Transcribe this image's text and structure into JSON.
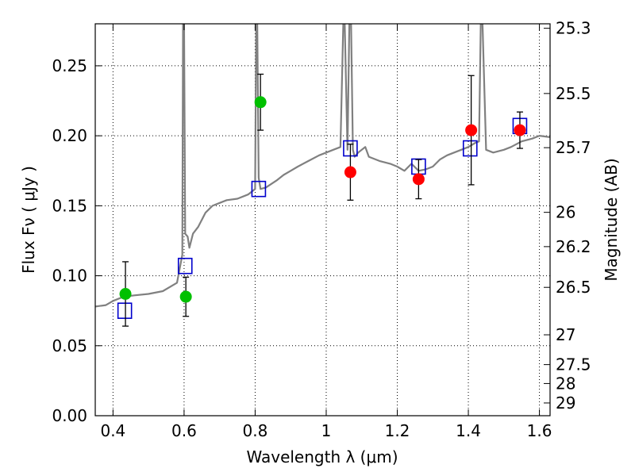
{
  "chart_data": {
    "type": "scatter",
    "xlabel": "Wavelength  λ (μm)",
    "ylabel": "Flux  Fν  ( μJy )",
    "y2label": "Magnitude (AB)",
    "xlim": [
      0.35,
      1.63
    ],
    "ylim": [
      0.0,
      0.28
    ],
    "grid": true,
    "x_ticks": [
      0.4,
      0.6,
      0.8,
      1.0,
      1.2,
      1.4,
      1.6
    ],
    "x_tick_labels": [
      "0.4",
      "0.6",
      "0.8",
      "1",
      "1.2",
      "1.4",
      "1.6"
    ],
    "y_ticks": [
      0.0,
      0.05,
      0.1,
      0.15,
      0.2,
      0.25
    ],
    "y_tick_labels": [
      "0.00",
      "0.05",
      "0.10",
      "0.15",
      "0.20",
      "0.25"
    ],
    "y2_ticks": [
      {
        "label": "25.3",
        "flux": 0.2768
      },
      {
        "label": "25.5",
        "flux": 0.2302
      },
      {
        "label": "25.7",
        "flux": 0.1915
      },
      {
        "label": "26",
        "flux": 0.1453
      },
      {
        "label": "26.2",
        "flux": 0.1208
      },
      {
        "label": "26.5",
        "flux": 0.0917
      },
      {
        "label": "27",
        "flux": 0.0578
      },
      {
        "label": "27.5",
        "flux": 0.0365
      },
      {
        "label": "28",
        "flux": 0.023
      },
      {
        "label": "29",
        "flux": 0.0091
      }
    ],
    "model_spectrum": {
      "color": "#808080",
      "x": [
        0.35,
        0.38,
        0.4,
        0.43,
        0.46,
        0.5,
        0.54,
        0.58,
        0.595,
        0.597,
        0.6,
        0.603,
        0.61,
        0.615,
        0.625,
        0.64,
        0.66,
        0.68,
        0.7,
        0.72,
        0.75,
        0.78,
        0.8,
        0.803,
        0.806,
        0.81,
        0.815,
        0.83,
        0.86,
        0.88,
        0.9,
        0.92,
        0.95,
        0.98,
        1.0,
        1.02,
        1.04,
        1.048,
        1.052,
        1.06,
        1.065,
        1.07,
        1.075,
        1.08,
        1.09,
        1.1,
        1.11,
        1.12,
        1.15,
        1.18,
        1.2,
        1.22,
        1.24,
        1.26,
        1.28,
        1.3,
        1.32,
        1.34,
        1.36,
        1.38,
        1.4,
        1.42,
        1.43,
        1.435,
        1.44,
        1.45,
        1.47,
        1.5,
        1.52,
        1.55,
        1.58,
        1.6,
        1.63
      ],
      "y": [
        0.078,
        0.079,
        0.082,
        0.085,
        0.086,
        0.087,
        0.089,
        0.095,
        0.115,
        0.28,
        0.28,
        0.13,
        0.128,
        0.12,
        0.13,
        0.135,
        0.145,
        0.15,
        0.152,
        0.154,
        0.155,
        0.158,
        0.162,
        0.28,
        0.28,
        0.17,
        0.162,
        0.163,
        0.168,
        0.172,
        0.175,
        0.178,
        0.182,
        0.186,
        0.188,
        0.19,
        0.192,
        0.28,
        0.28,
        0.19,
        0.28,
        0.28,
        0.19,
        0.185,
        0.188,
        0.19,
        0.192,
        0.185,
        0.182,
        0.18,
        0.178,
        0.175,
        0.18,
        0.175,
        0.176,
        0.178,
        0.183,
        0.186,
        0.188,
        0.19,
        0.192,
        0.195,
        0.196,
        0.28,
        0.28,
        0.19,
        0.188,
        0.19,
        0.192,
        0.196,
        0.198,
        0.2,
        0.199
      ]
    },
    "series": [
      {
        "marker": "circle",
        "color": "#00c000",
        "x": [
          0.435,
          0.605,
          0.815
        ],
        "y": [
          0.087,
          0.085,
          0.224
        ],
        "err": [
          0.023,
          0.014,
          0.02
        ]
      },
      {
        "marker": "circle",
        "color": "#ff0000",
        "x": [
          1.068,
          1.26,
          1.408,
          1.545
        ],
        "y": [
          0.174,
          0.169,
          0.204,
          0.204
        ],
        "err": [
          0.02,
          0.014,
          0.039,
          0.013
        ]
      },
      {
        "marker": "open-square",
        "color": "#0000cc",
        "x": [
          0.433,
          0.603,
          0.81,
          1.068,
          1.26,
          1.405,
          1.545
        ],
        "y": [
          0.075,
          0.107,
          0.162,
          0.191,
          0.178,
          0.191,
          0.207
        ]
      }
    ]
  }
}
